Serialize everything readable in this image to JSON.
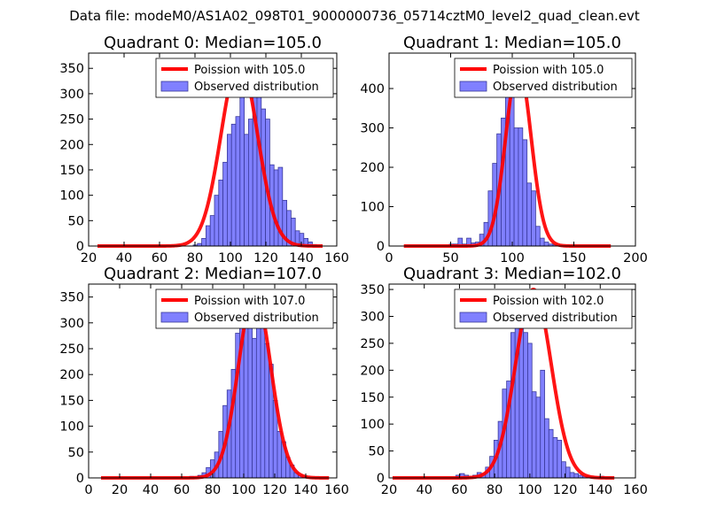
{
  "figure": {
    "suptitle": "Data file: modeM0/AS1A02_098T01_9000000736_05714cztM0_level2_quad_clean.evt"
  },
  "colors": {
    "bar_fill": "#8080ff",
    "bar_edge": "#3a3a9a",
    "line": "#ff0000"
  },
  "chart_data": [
    {
      "type": "bar",
      "title": "Quadrant 0: Median=105.0",
      "xlim": [
        20,
        160
      ],
      "ylim": [
        0,
        380
      ],
      "xticks": [
        20,
        40,
        60,
        80,
        100,
        120,
        140,
        160
      ],
      "yticks": [
        0,
        50,
        100,
        150,
        200,
        250,
        300,
        350
      ],
      "bins": {
        "start": 79,
        "width": 2.4
      },
      "values": [
        2,
        5,
        15,
        40,
        60,
        100,
        130,
        165,
        220,
        240,
        255,
        350,
        220,
        250,
        365,
        310,
        270,
        250,
        160,
        150,
        155,
        90,
        70,
        55,
        30,
        25,
        15,
        8,
        3
      ],
      "legend": [
        "Poission with 105.0",
        "Observed distribution"
      ],
      "poisson": {
        "mean": 105.0,
        "peak": 365,
        "x_range": [
          25,
          152
        ]
      }
    },
    {
      "type": "bar",
      "title": "Quadrant 1: Median=105.0",
      "xlim": [
        0,
        200
      ],
      "ylim": [
        0,
        490
      ],
      "xticks": [
        0,
        50,
        100,
        150,
        200
      ],
      "yticks": [
        0,
        100,
        200,
        300,
        400
      ],
      "bins": {
        "start": 49,
        "width": 3.5
      },
      "values": [
        5,
        5,
        20,
        5,
        20,
        8,
        10,
        30,
        60,
        140,
        210,
        285,
        325,
        400,
        435,
        300,
        300,
        270,
        160,
        140,
        50,
        20,
        10,
        5,
        3
      ],
      "legend": [
        "Poission with 105.0",
        "Observed distribution"
      ],
      "poisson": {
        "mean": 105.0,
        "peak": 460,
        "x_range": [
          12,
          180
        ]
      }
    },
    {
      "type": "bar",
      "title": "Quadrant 2: Median=107.0",
      "xlim": [
        0,
        160
      ],
      "ylim": [
        0,
        375
      ],
      "xticks": [
        0,
        20,
        40,
        60,
        80,
        100,
        120,
        140,
        160
      ],
      "yticks": [
        0,
        50,
        100,
        150,
        200,
        250,
        300,
        350
      ],
      "bins": {
        "start": 65,
        "width": 2.7
      },
      "values": [
        3,
        2,
        5,
        10,
        20,
        35,
        50,
        90,
        140,
        170,
        210,
        280,
        340,
        350,
        335,
        270,
        345,
        340,
        260,
        220,
        150,
        90,
        70,
        40,
        25,
        10,
        5,
        2
      ],
      "legend": [
        "Poission with 107.0",
        "Observed distribution"
      ],
      "poisson": {
        "mean": 107.0,
        "peak": 360,
        "x_range": [
          8,
          155
        ]
      }
    },
    {
      "type": "bar",
      "title": "Quadrant 3: Median=102.0",
      "xlim": [
        20,
        160
      ],
      "ylim": [
        0,
        360
      ],
      "xticks": [
        20,
        40,
        60,
        80,
        100,
        120,
        140,
        160
      ],
      "yticks": [
        0,
        50,
        100,
        150,
        200,
        250,
        300,
        350
      ],
      "bins": {
        "start": 58,
        "width": 2.4
      },
      "values": [
        5,
        8,
        5,
        3,
        5,
        10,
        8,
        20,
        40,
        70,
        105,
        165,
        180,
        270,
        300,
        330,
        270,
        250,
        160,
        150,
        200,
        110,
        90,
        75,
        70,
        30,
        20,
        10,
        8,
        5,
        3,
        3,
        2,
        2,
        3
      ],
      "legend": [
        "Poission with 102.0",
        "Observed distribution"
      ],
      "poisson": {
        "mean": 102.0,
        "peak": 350,
        "x_range": [
          22,
          148
        ]
      }
    }
  ]
}
